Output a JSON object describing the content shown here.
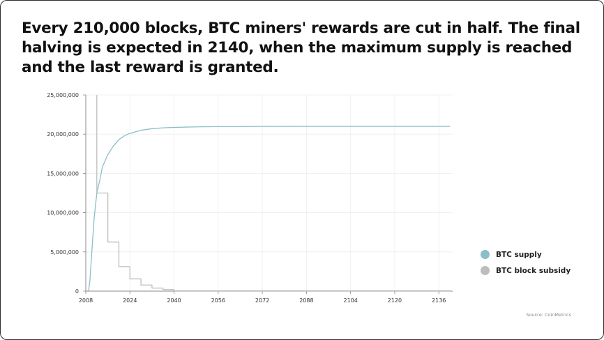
{
  "title": "Every 210,000 blocks, BTC miners' rewards are cut in half. The final halving is expected in 2140, when the maximum supply is reached and the last reward is granted.",
  "source": "Source: CoinMetrics",
  "colors": {
    "supply": "#8bbec8",
    "subsidy": "#bdbdbd",
    "axis": "#888888",
    "grid": "#eeeeee"
  },
  "chart_data": {
    "type": "line",
    "title": "Every 210,000 blocks, BTC miners' rewards are cut in half. The final halving is expected in 2140, when the maximum supply is reached and the last reward is granted.",
    "xlabel": "",
    "ylabel": "",
    "xlim": [
      2008,
      2141
    ],
    "ylim": [
      0,
      25000000
    ],
    "x_ticks": [
      "2008",
      "2024",
      "2040",
      "2056",
      "2072",
      "2088",
      "2104",
      "2120",
      "2136"
    ],
    "y_ticks": [
      "0",
      "5,000,000",
      "10,000,000",
      "15,000,000",
      "20,000,000",
      "25,000,000"
    ],
    "grid": true,
    "legend_position": "right",
    "series": [
      {
        "name": "BTC supply",
        "x": [
          2009,
          2009.5,
          2010,
          2011,
          2012,
          2013,
          2014,
          2016,
          2018,
          2020,
          2022,
          2024,
          2028,
          2032,
          2036,
          2040,
          2044,
          2048,
          2056,
          2072,
          2088,
          2104,
          2120,
          2140
        ],
        "y": [
          0,
          1400000,
          4000000,
          9200000,
          12500000,
          14000000,
          15800000,
          17400000,
          18500000,
          19300000,
          19800000,
          20100000,
          20500000,
          20700000,
          20810000,
          20860000,
          20900000,
          20930000,
          20960000,
          20990000,
          21000000,
          21000000,
          21000000,
          21000000
        ]
      },
      {
        "name": "BTC block subsidy",
        "x": [
          2012,
          2012,
          2016,
          2016,
          2020,
          2020,
          2024,
          2024,
          2028,
          2028,
          2032,
          2032,
          2036,
          2036,
          2040,
          2040,
          2140
        ],
        "y": [
          25000000,
          12500000,
          12500000,
          6250000,
          6250000,
          3125000,
          3125000,
          1562500,
          1562500,
          781250,
          781250,
          390625,
          390625,
          195312,
          195312,
          40000,
          40000
        ]
      }
    ]
  }
}
